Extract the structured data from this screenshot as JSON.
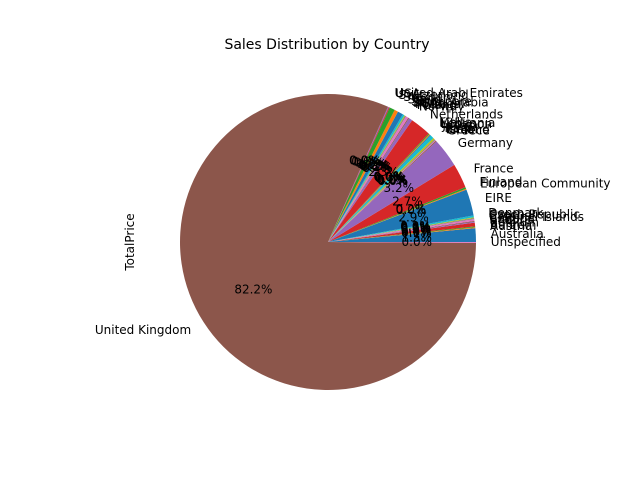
{
  "chart_data": {
    "type": "pie",
    "title": "Sales Distribution by Country",
    "ylabel": "TotalPrice",
    "start_angle_deg": 0,
    "direction": "counterclockwise",
    "pct_label_threshold": 0,
    "colors": [
      "#1f77b4",
      "#ff7f0e",
      "#2ca02c",
      "#d62728",
      "#9467bd",
      "#8c564b",
      "#e377c2",
      "#7f7f7f",
      "#bcbd22",
      "#17becf"
    ],
    "slices": [
      {
        "label": "Australia",
        "value": 1.5,
        "pct_label": "1.5%"
      },
      {
        "label": "Austria",
        "value": 0.1,
        "pct_label": "0.1%"
      },
      {
        "label": "Bahrain",
        "value": 0.1,
        "pct_label": "0.0%"
      },
      {
        "label": "Belgium",
        "value": 0.4,
        "pct_label": "0.4%"
      },
      {
        "label": "Brazil",
        "value": 0.1,
        "pct_label": "0.0%"
      },
      {
        "label": "Canada",
        "value": 0.1,
        "pct_label": "0.1%"
      },
      {
        "label": "Channel Islands",
        "value": 0.2,
        "pct_label": "0.2%"
      },
      {
        "label": "Cyprus",
        "value": 0.1,
        "pct_label": "0.1%"
      },
      {
        "label": "Czech Republic",
        "value": 0.1,
        "pct_label": "0.0%"
      },
      {
        "label": "Denmark",
        "value": 0.2,
        "pct_label": "0.2%"
      },
      {
        "label": "EIRE",
        "value": 2.9,
        "pct_label": "2.9%"
      },
      {
        "label": "European Community",
        "value": 0.1,
        "pct_label": "0.0%"
      },
      {
        "label": "Finland",
        "value": 0.2,
        "pct_label": "0.2%"
      },
      {
        "label": "France",
        "value": 2.7,
        "pct_label": "2.7%"
      },
      {
        "label": "Germany",
        "value": 3.2,
        "pct_label": "3.2%"
      },
      {
        "label": "Greece",
        "value": 0.1,
        "pct_label": "0.0%"
      },
      {
        "label": "Iceland",
        "value": 0.1,
        "pct_label": "0.0%"
      },
      {
        "label": "Israel",
        "value": 0.1,
        "pct_label": "0.0%"
      },
      {
        "label": "Italy",
        "value": 0.2,
        "pct_label": "0.2%"
      },
      {
        "label": "Japan",
        "value": 0.4,
        "pct_label": "0.4%"
      },
      {
        "label": "Lebanon",
        "value": 0.1,
        "pct_label": "0.0%"
      },
      {
        "label": "Lithuania",
        "value": 0.1,
        "pct_label": "0.0%"
      },
      {
        "label": "Malta",
        "value": 0.1,
        "pct_label": "0.0%"
      },
      {
        "label": "Netherlands",
        "value": 2.3,
        "pct_label": "2.3%"
      },
      {
        "label": "Norway",
        "value": 0.4,
        "pct_label": "0.4%"
      },
      {
        "label": "Poland",
        "value": 0.1,
        "pct_label": "0.1%"
      },
      {
        "label": "Portugal",
        "value": 0.3,
        "pct_label": "0.3%"
      },
      {
        "label": "RSA",
        "value": 0.1,
        "pct_label": "0.0%"
      },
      {
        "label": "Saudi Arabia",
        "value": 0.1,
        "pct_label": "0.0%"
      },
      {
        "label": "Singapore",
        "value": 0.2,
        "pct_label": "0.2%"
      },
      {
        "label": "Spain",
        "value": 0.6,
        "pct_label": "0.6%"
      },
      {
        "label": "Sweden",
        "value": 0.4,
        "pct_label": "0.4%"
      },
      {
        "label": "Switzerland",
        "value": 0.6,
        "pct_label": "0.6%"
      },
      {
        "label": "USA",
        "value": 0.1,
        "pct_label": "0.0%"
      },
      {
        "label": "United Arab Emirates",
        "value": 0.1,
        "pct_label": "0.0%"
      },
      {
        "label": "United Kingdom",
        "value": 82.2,
        "pct_label": "82.2%"
      },
      {
        "label": "Unspecified",
        "value": 0.1,
        "pct_label": "0.0%"
      }
    ]
  }
}
